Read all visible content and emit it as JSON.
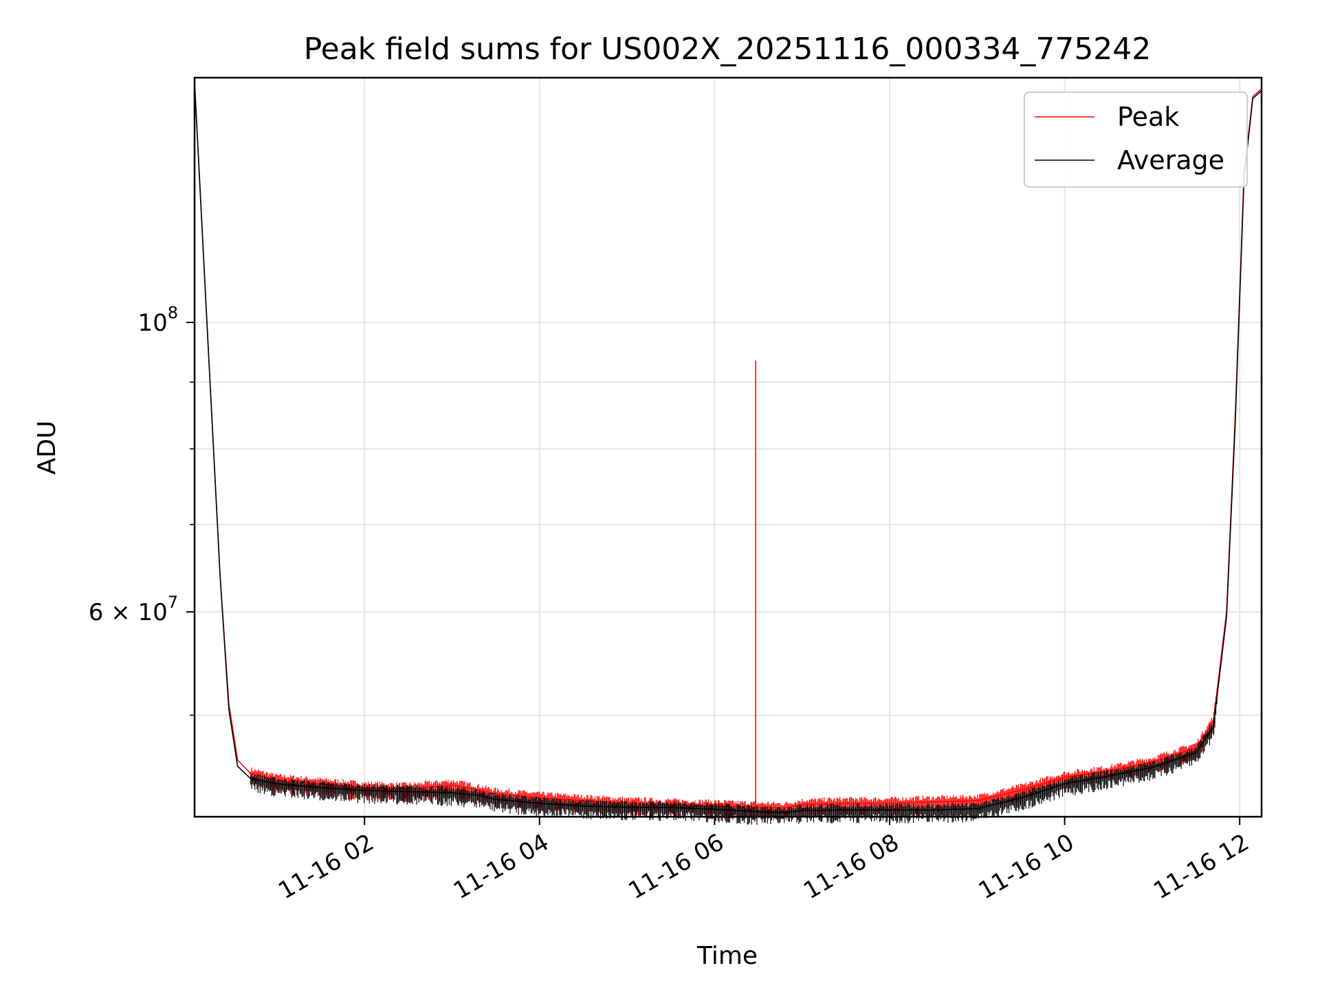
{
  "chart_data": {
    "type": "line",
    "title": "Peak field sums for US002X_20251116_000334_775242",
    "xlabel": "Time",
    "ylabel": "ADU",
    "yscale": "log",
    "xlim": [
      0.0584,
      12.25
    ],
    "ylim": [
      41800000,
      154000000
    ],
    "x_ticks": [
      {
        "value": 2,
        "label": "11-16 02"
      },
      {
        "value": 4,
        "label": "11-16 04"
      },
      {
        "value": 6,
        "label": "11-16 06"
      },
      {
        "value": 8,
        "label": "11-16 08"
      },
      {
        "value": 10,
        "label": "11-16 10"
      },
      {
        "value": 12,
        "label": "11-16 12"
      }
    ],
    "y_major_ticks": [
      {
        "value": 100000000,
        "base": "10",
        "exp": "8"
      },
      {
        "value": 60000000,
        "mantissa": "6 × 10",
        "exp": "7"
      }
    ],
    "y_minor_ticks": [
      50000000,
      70000000,
      80000000,
      90000000
    ],
    "grid": true,
    "legend_position": "upper right",
    "series": [
      {
        "name": "Peak",
        "color": "#ff0000",
        "x": [
          0.06,
          0.2,
          0.35,
          0.45,
          0.55,
          0.7,
          1.0,
          1.5,
          2.0,
          2.5,
          3.0,
          3.3,
          3.5,
          4.0,
          4.5,
          5.0,
          5.5,
          6.0,
          6.4,
          6.8,
          7.0,
          7.5,
          8.0,
          8.5,
          9.0,
          9.5,
          10.0,
          10.5,
          11.0,
          11.5,
          11.7,
          11.85,
          11.95,
          12.05,
          12.15,
          12.25
        ],
        "values": [
          152000000,
          100000000,
          64000000,
          51000000,
          46200000,
          45100000,
          44600000,
          44300000,
          44000000,
          43900000,
          44200000,
          43800000,
          43500000,
          43200000,
          43000000,
          42800000,
          42700000,
          42600000,
          42500000,
          42450000,
          42700000,
          42800000,
          42800000,
          42900000,
          43000000,
          43800000,
          44800000,
          45300000,
          46000000,
          47200000,
          49500000,
          60000000,
          85000000,
          130000000,
          149000000,
          151000000
        ],
        "annotations": [
          {
            "x": 6.47,
            "value": 93500000,
            "note": "spike"
          }
        ]
      },
      {
        "name": "Average",
        "color": "#000000",
        "x": [
          0.06,
          0.2,
          0.35,
          0.45,
          0.55,
          0.7,
          1.0,
          1.5,
          2.0,
          2.5,
          3.0,
          3.3,
          3.5,
          4.0,
          4.5,
          5.0,
          5.5,
          6.0,
          6.4,
          6.8,
          7.0,
          7.5,
          8.0,
          8.5,
          9.0,
          9.5,
          10.0,
          10.5,
          11.0,
          11.5,
          11.7,
          11.85,
          11.95,
          12.05,
          12.15,
          12.25
        ],
        "values": [
          152000000,
          100000000,
          64000000,
          50500000,
          45700000,
          44700000,
          44300000,
          44000000,
          43800000,
          43700000,
          43600000,
          43400000,
          43100000,
          42800000,
          42600000,
          42500000,
          42500000,
          42350000,
          42200000,
          42100000,
          42250000,
          42300000,
          42300000,
          42300000,
          42400000,
          43200000,
          44300000,
          44900000,
          45600000,
          46800000,
          49000000,
          59500000,
          84000000,
          129000000,
          148500000,
          150500000
        ]
      }
    ]
  }
}
